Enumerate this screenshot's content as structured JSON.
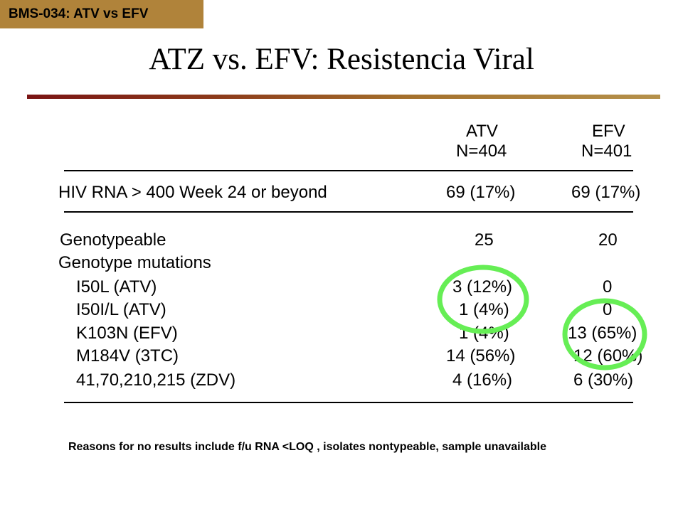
{
  "tag": "BMS-034: ATV vs EFV",
  "title": "ATZ vs. EFV: Resistencia Viral",
  "columns": {
    "atv": {
      "name": "ATV",
      "n": "N=404"
    },
    "efv": {
      "name": "EFV",
      "n": "N=401"
    }
  },
  "rows": [
    {
      "label": "HIV RNA > 400 Week 24 or beyond",
      "atv": "69 (17%)",
      "efv": "69 (17%)"
    },
    {
      "label": "Genotypeable",
      "atv": "25",
      "efv": "20"
    },
    {
      "label": "Genotype mutations",
      "atv": "",
      "efv": ""
    },
    {
      "label": "I50L (ATV)",
      "atv": "3 (12%)",
      "efv": "0"
    },
    {
      "label": "I50I/L (ATV)",
      "atv": "1 (4%)",
      "efv": "0"
    },
    {
      "label": "K103N (EFV)",
      "atv": "1 (4%)",
      "efv": "13 (65%)"
    },
    {
      "label": "M184V (3TC)",
      "atv": "14 (56%)",
      "efv": "12 (60%)"
    },
    {
      "label": "41,70,210,215 (ZDV)",
      "atv": "4 (16%)",
      "efv": "6 (30%)"
    }
  ],
  "note": "Reasons for no results include f/u RNA <LOQ , isolates nontypeable, sample unavailable",
  "colors": {
    "tag_bg": "#b0833a",
    "highlight_circle": "#66ee55"
  }
}
